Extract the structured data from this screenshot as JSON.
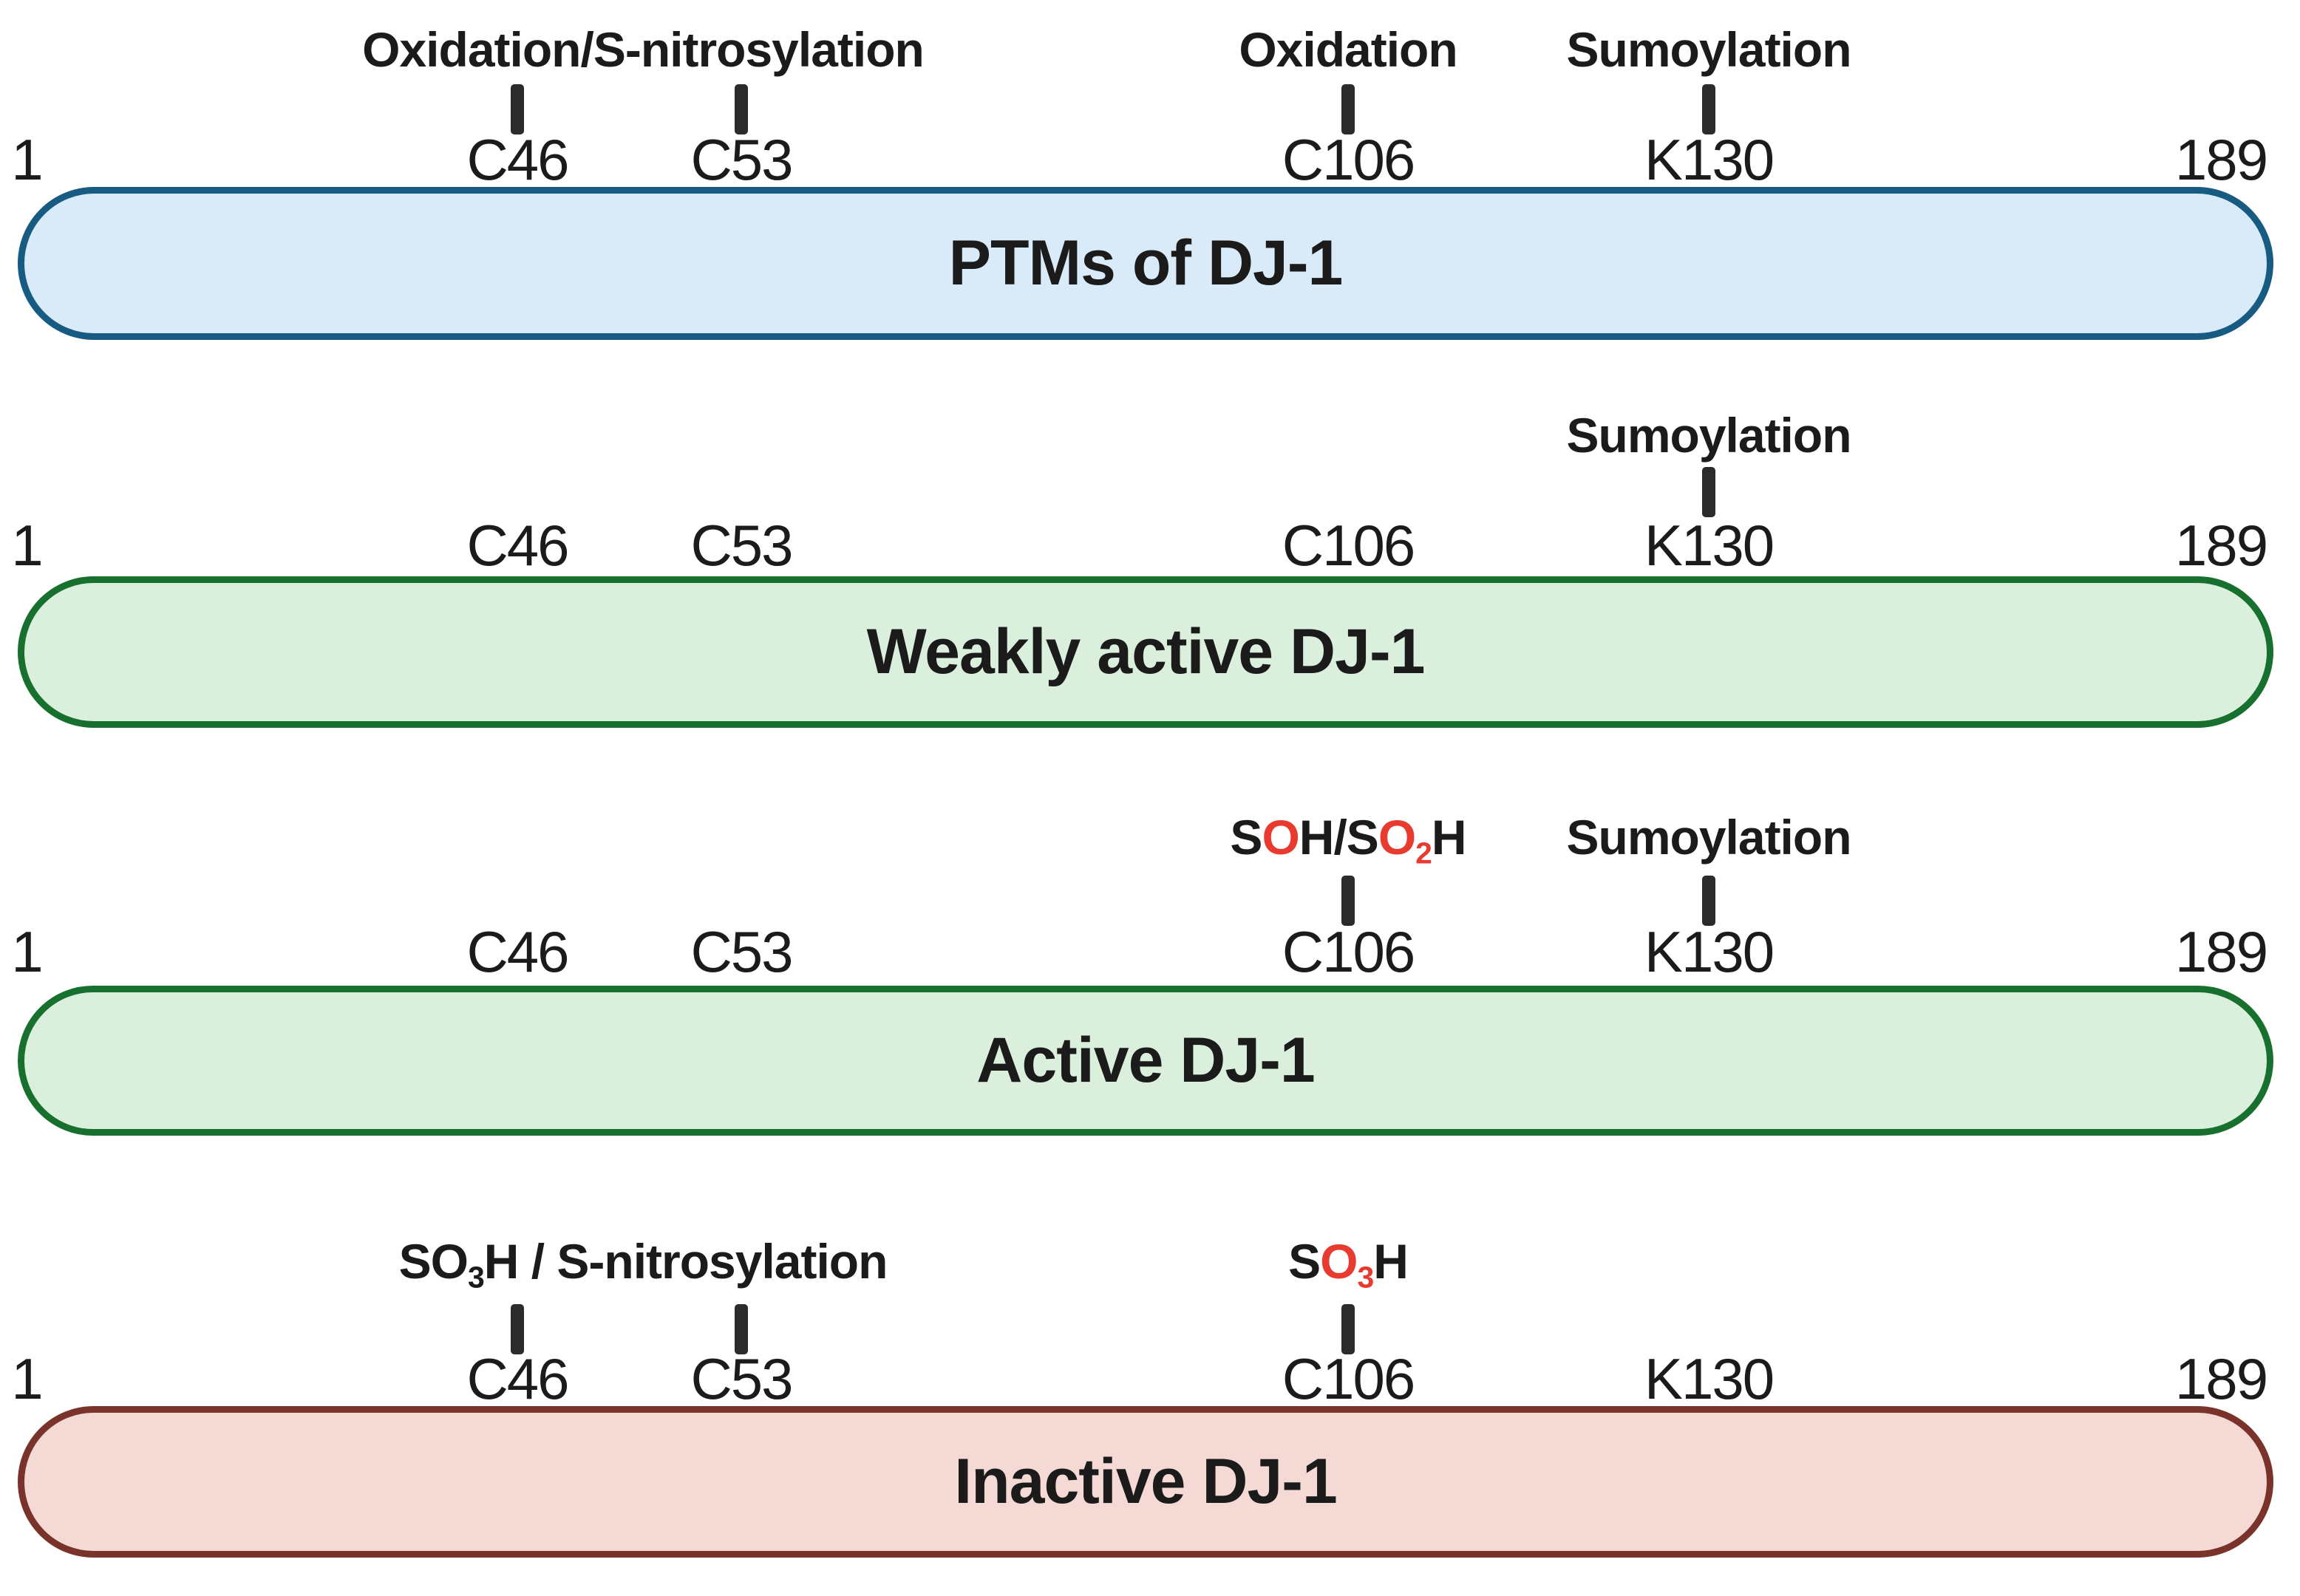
{
  "figure": {
    "description": "Post-translational modifications of DJ-1 protein schematic",
    "background": "#ffffff"
  },
  "palette": {
    "text": "#1b1b1b",
    "tick": "#2b2b2b",
    "accent_red": "#e93a30",
    "themes": {
      "blue": {
        "fill": "#d9eaf8",
        "border": "#175a82"
      },
      "green": {
        "fill": "#daf0dc",
        "border": "#17702e"
      },
      "maroon": {
        "fill": "#f4d9d5",
        "border": "#7a332a"
      }
    }
  },
  "scale": {
    "start": "1",
    "end": "189"
  },
  "residues": [
    "C46",
    "C53",
    "C106",
    "K130"
  ],
  "rows": [
    {
      "title": "PTMs of DJ-1",
      "theme": "blue",
      "ticks": [
        "C46",
        "C53",
        "C106",
        "K130"
      ],
      "mods": [
        {
          "anchor": "C46-C53",
          "segments": [
            {
              "t": "Oxidation/S-nitrosylation"
            }
          ]
        },
        {
          "anchor": "C106",
          "segments": [
            {
              "t": "Oxidation"
            }
          ]
        },
        {
          "anchor": "K130",
          "segments": [
            {
              "t": "Sumoylation"
            }
          ]
        }
      ]
    },
    {
      "title": "Weakly active DJ-1",
      "theme": "green",
      "ticks": [
        "K130"
      ],
      "mods": [
        {
          "anchor": "K130",
          "segments": [
            {
              "t": "Sumoylation"
            }
          ]
        }
      ]
    },
    {
      "title": "Active DJ-1",
      "theme": "green",
      "ticks": [
        "C106",
        "K130"
      ],
      "mods": [
        {
          "anchor": "C106",
          "segments": [
            {
              "t": "S"
            },
            {
              "t": "O",
              "red": true
            },
            {
              "t": "H/S"
            },
            {
              "t": "O",
              "red": true
            },
            {
              "t": "2",
              "red": true,
              "sub": true
            },
            {
              "t": "H"
            }
          ]
        },
        {
          "anchor": "K130",
          "segments": [
            {
              "t": "Sumoylation"
            }
          ]
        }
      ]
    },
    {
      "title": "Inactive DJ-1",
      "theme": "maroon",
      "ticks": [
        "C46",
        "C53",
        "C106"
      ],
      "mods": [
        {
          "anchor": "C46-C53",
          "segments": [
            {
              "t": "SO"
            },
            {
              "t": "3",
              "sub": true
            },
            {
              "t": "H / S-nitrosylation"
            }
          ]
        },
        {
          "anchor": "C106",
          "segments": [
            {
              "t": "S"
            },
            {
              "t": "O",
              "red": true
            },
            {
              "t": "3",
              "red": true,
              "sub": true
            },
            {
              "t": "H"
            }
          ]
        }
      ]
    }
  ]
}
